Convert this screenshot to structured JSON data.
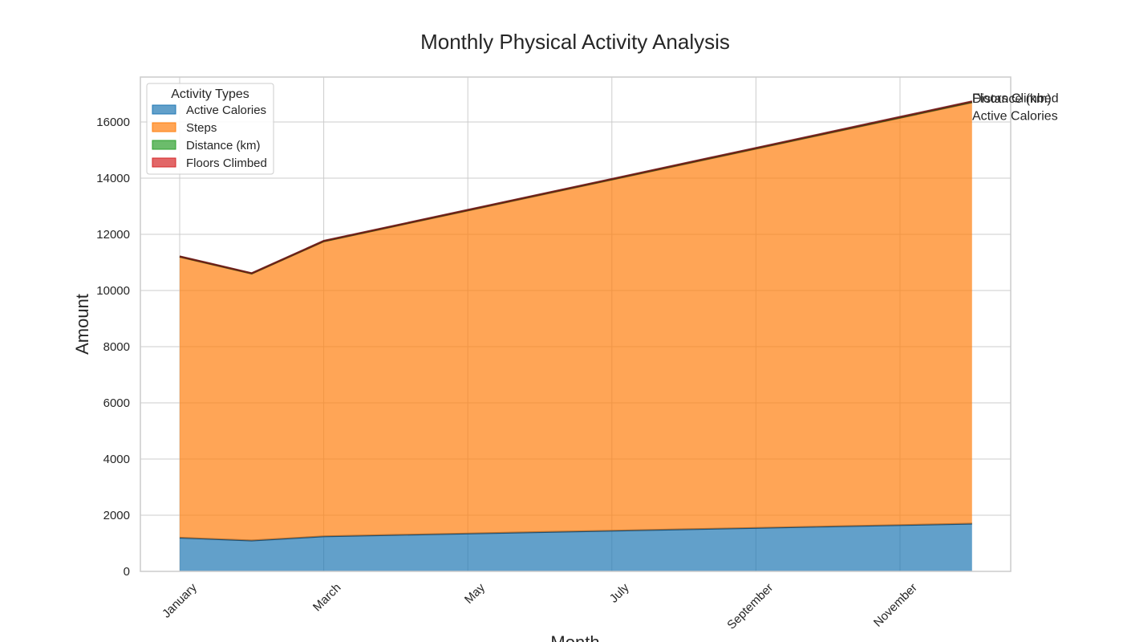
{
  "chart_data": {
    "type": "area",
    "stacked": true,
    "title": "Monthly Physical Activity Analysis",
    "xlabel": "Month",
    "ylabel": "Amount",
    "categories": [
      "January",
      "February",
      "March",
      "April",
      "May",
      "June",
      "July",
      "August",
      "September",
      "October",
      "November",
      "December"
    ],
    "x_tick_labels": [
      "January",
      "March",
      "May",
      "July",
      "September",
      "November"
    ],
    "y_ticks": [
      0,
      2000,
      4000,
      6000,
      8000,
      10000,
      12000,
      14000,
      16000
    ],
    "ylim": [
      0,
      17600
    ],
    "grid": true,
    "legend": {
      "title": "Activity Types",
      "placement": "top-left"
    },
    "series": [
      {
        "name": "Active Calories",
        "color": "#1f77b4",
        "values": [
          1200,
          1100,
          1250,
          1300,
          1350,
          1400,
          1450,
          1500,
          1550,
          1600,
          1650,
          1700
        ]
      },
      {
        "name": "Steps",
        "color": "#ff7f0e",
        "values": [
          10000,
          9500,
          10500,
          11000,
          11500,
          12000,
          12500,
          13000,
          13500,
          14000,
          14500,
          15000
        ]
      },
      {
        "name": "Distance (km)",
        "color": "#2ca02c",
        "values": [
          8,
          7.5,
          8.5,
          9,
          9.5,
          10,
          10.5,
          11,
          11.5,
          12,
          12.5,
          13
        ]
      },
      {
        "name": "Floors Climbed",
        "color": "#d62728",
        "values": [
          10,
          9,
          11,
          12,
          13,
          14,
          15,
          16,
          17,
          18,
          19,
          20
        ]
      }
    ],
    "end_labels": [
      "Active Calories",
      "Distance (km)",
      "Floors Climbed"
    ]
  }
}
